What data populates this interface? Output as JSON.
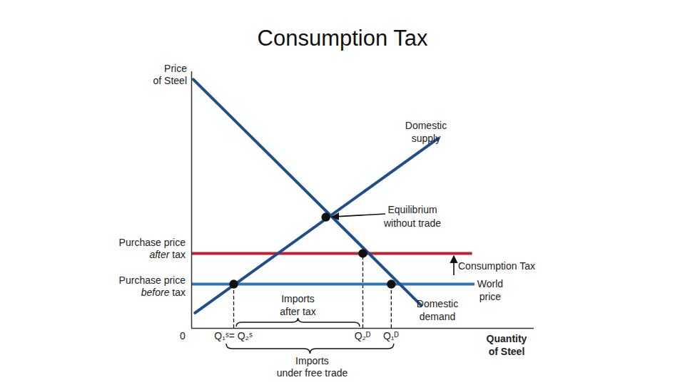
{
  "chart_data": {
    "type": "line",
    "title": "Consumption Tax",
    "x_label": "Quantity of Steel",
    "y_label": "Price of Steel",
    "xlim": [
      0,
      100
    ],
    "ylim": [
      0,
      100
    ],
    "tick_labels": false,
    "origin_label": "0",
    "series": [
      {
        "name": "Domestic supply",
        "color": "#1f4e8c",
        "x": [
          1,
          72
        ],
        "values": [
          6,
          74
        ]
      },
      {
        "name": "Domestic demand",
        "color": "#1f4e8c",
        "x": [
          0.5,
          67
        ],
        "values": [
          97,
          9
        ]
      }
    ],
    "price_lines": [
      {
        "name": "World price",
        "label": "Purchase price before tax",
        "value": 17.2,
        "end": 82.7,
        "color": "#2e75b6"
      },
      {
        "label": "Purchase price after tax",
        "value": 29.2,
        "end": 82,
        "color": "#c0202e"
      }
    ],
    "points": [
      {
        "label": "Equilibrium without trade",
        "x": 39.2,
        "y": 43.3
      },
      {
        "x": 12.3,
        "y": 17.2
      },
      {
        "x": 50,
        "y": 29.2
      },
      {
        "x": 58.3,
        "y": 17.2
      }
    ],
    "quantities": [
      {
        "label": "Q₁ˢ= Q₂ˢ",
        "value": 12.3,
        "price": 17.2
      },
      {
        "label": "Q₂ᴰ",
        "value": 50,
        "price": 29.2
      },
      {
        "label": "Q₁ᴰ",
        "value": 58.3,
        "price": 17.2
      }
    ],
    "imports": [
      {
        "label": "Imports after tax",
        "from": 12.3,
        "to": 50
      },
      {
        "label": "Imports under free trade",
        "from": 12.3,
        "to": 58.3
      }
    ],
    "tax_label": "Consumption Tax"
  }
}
